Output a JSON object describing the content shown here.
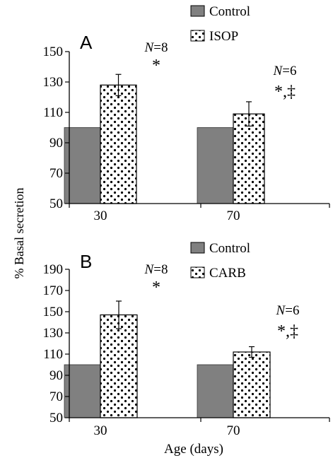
{
  "ylabel": "% Basal secretion",
  "xlabel": "Age (days)",
  "colors": {
    "control": "#808080",
    "treatment_bg": "#ffffff",
    "dots": "#000000"
  },
  "chart_data": [
    {
      "type": "bar",
      "panel_label": "A",
      "categories": [
        "30",
        "70"
      ],
      "series": [
        {
          "name": "Control",
          "values": [
            100,
            100
          ]
        },
        {
          "name": "ISOP",
          "values": [
            128,
            109
          ],
          "errors": [
            7,
            8
          ]
        }
      ],
      "annotations": [
        {
          "n": "N=8",
          "sig": "*"
        },
        {
          "n": "N=6",
          "sig": "*,‡"
        }
      ],
      "ylim": [
        50,
        150
      ],
      "yticks": [
        50,
        70,
        90,
        110,
        130,
        150
      ],
      "legend": "top-right",
      "grid": false
    },
    {
      "type": "bar",
      "panel_label": "B",
      "categories": [
        "30",
        "70"
      ],
      "series": [
        {
          "name": "Control",
          "values": [
            100,
            100
          ]
        },
        {
          "name": "CARB",
          "values": [
            147,
            112
          ],
          "errors": [
            13,
            5
          ]
        }
      ],
      "annotations": [
        {
          "n": "N=8",
          "sig": "*"
        },
        {
          "n": "N=6",
          "sig": "*,‡"
        }
      ],
      "ylim": [
        50,
        190
      ],
      "yticks": [
        50,
        70,
        90,
        110,
        130,
        150,
        170,
        190
      ],
      "legend": "top-right",
      "grid": false
    }
  ]
}
